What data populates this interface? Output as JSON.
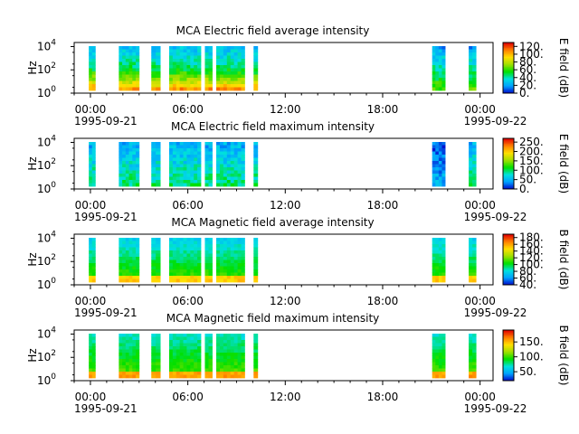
{
  "chart_data": [
    {
      "type": "heatmap",
      "title": "MCA  Electric field average intensity",
      "ylabel": "Hz",
      "y_scale": "log",
      "y_ticks": [
        {
          "base": "10",
          "exp": "0"
        },
        {
          "base": "10",
          "exp": "2"
        },
        {
          "base": "10",
          "exp": "4"
        }
      ],
      "x_ticks": [
        "00:00",
        "06:00",
        "12:00",
        "18:00",
        "00:00"
      ],
      "x_start_date": "1995-09-21",
      "x_end_date": "1995-09-22",
      "colorbar": {
        "label": "E field (dB)",
        "ticks": [
          "0.",
          "20.",
          "40.",
          "60.",
          "80.",
          "100.",
          "120."
        ],
        "range": [
          0,
          130
        ],
        "colors": [
          "#0000c8",
          "#00a0ff",
          "#00e0e0",
          "#00e000",
          "#a0e000",
          "#ffe000",
          "#ff8000",
          "#e00000"
        ]
      },
      "data_segments_hours": [
        [
          -0.1,
          0.3
        ],
        [
          1.75,
          3.0
        ],
        [
          3.75,
          4.3
        ],
        [
          4.85,
          6.8
        ],
        [
          7.05,
          7.5
        ],
        [
          7.75,
          9.5
        ],
        [
          10.05,
          10.3
        ],
        [
          21.05,
          21.85
        ],
        [
          23.3,
          23.75
        ]
      ]
    },
    {
      "type": "heatmap",
      "title": "MCA  Electric field maximum intensity",
      "ylabel": "Hz",
      "y_scale": "log",
      "y_ticks": [
        {
          "base": "10",
          "exp": "0"
        },
        {
          "base": "10",
          "exp": "2"
        },
        {
          "base": "10",
          "exp": "4"
        }
      ],
      "x_ticks": [
        "00:00",
        "06:00",
        "12:00",
        "18:00",
        "00:00"
      ],
      "x_start_date": "1995-09-21",
      "x_end_date": "1995-09-22",
      "colorbar": {
        "label": "E field (dB)",
        "ticks": [
          "0.",
          "50.",
          "100.",
          "150.",
          "200.",
          "250."
        ],
        "range": [
          0,
          270
        ],
        "colors": [
          "#0000c8",
          "#00a0ff",
          "#00e0e0",
          "#00e000",
          "#a0e000",
          "#ffe000",
          "#ff8000",
          "#e00000"
        ]
      },
      "data_segments_hours": [
        [
          -0.1,
          0.3
        ],
        [
          1.75,
          3.0
        ],
        [
          3.75,
          4.3
        ],
        [
          4.85,
          6.8
        ],
        [
          7.05,
          7.5
        ],
        [
          7.75,
          9.5
        ],
        [
          10.05,
          10.3
        ],
        [
          21.05,
          21.85
        ],
        [
          23.3,
          23.75
        ]
      ]
    },
    {
      "type": "heatmap",
      "title": "MCA  Magnetic field average intensity",
      "ylabel": "Hz",
      "y_scale": "log",
      "y_ticks": [
        {
          "base": "10",
          "exp": "0"
        },
        {
          "base": "10",
          "exp": "2"
        },
        {
          "base": "10",
          "exp": "4"
        }
      ],
      "x_ticks": [
        "00:00",
        "06:00",
        "12:00",
        "18:00",
        "00:00"
      ],
      "x_start_date": "1995-09-21",
      "x_end_date": "1995-09-22",
      "colorbar": {
        "label": "B field (dB)",
        "ticks": [
          "40.",
          "60.",
          "80.",
          "100.",
          "120.",
          "140.",
          "160.",
          "180."
        ],
        "range": [
          40,
          190
        ],
        "colors": [
          "#0000c8",
          "#00a0ff",
          "#00e0e0",
          "#00e000",
          "#a0e000",
          "#ffe000",
          "#ff8000",
          "#e00000"
        ]
      },
      "data_segments_hours": [
        [
          -0.1,
          0.3
        ],
        [
          1.75,
          3.0
        ],
        [
          3.75,
          4.3
        ],
        [
          4.85,
          6.8
        ],
        [
          7.05,
          7.5
        ],
        [
          7.75,
          9.5
        ],
        [
          10.05,
          10.3
        ],
        [
          21.05,
          21.85
        ],
        [
          23.3,
          23.75
        ]
      ]
    },
    {
      "type": "heatmap",
      "title": "MCA  Magnetic field maximum intensity",
      "ylabel": "Hz",
      "y_scale": "log",
      "y_ticks": [
        {
          "base": "10",
          "exp": "0"
        },
        {
          "base": "10",
          "exp": "2"
        },
        {
          "base": "10",
          "exp": "4"
        }
      ],
      "x_ticks": [
        "00:00",
        "06:00",
        "12:00",
        "18:00",
        "00:00"
      ],
      "x_start_date": "1995-09-21",
      "x_end_date": "1995-09-22",
      "colorbar": {
        "label": "B field (dB)",
        "ticks": [
          "50.",
          "100.",
          "150."
        ],
        "range": [
          20,
          190
        ],
        "colors": [
          "#0000c8",
          "#00a0ff",
          "#00e0e0",
          "#00e000",
          "#a0e000",
          "#ffe000",
          "#ff8000",
          "#e00000"
        ]
      },
      "data_segments_hours": [
        [
          -0.1,
          0.3
        ],
        [
          1.75,
          3.0
        ],
        [
          3.75,
          4.3
        ],
        [
          4.85,
          6.8
        ],
        [
          7.05,
          7.5
        ],
        [
          7.75,
          9.5
        ],
        [
          10.05,
          10.3
        ],
        [
          21.05,
          21.85
        ],
        [
          23.3,
          23.75
        ]
      ]
    }
  ]
}
